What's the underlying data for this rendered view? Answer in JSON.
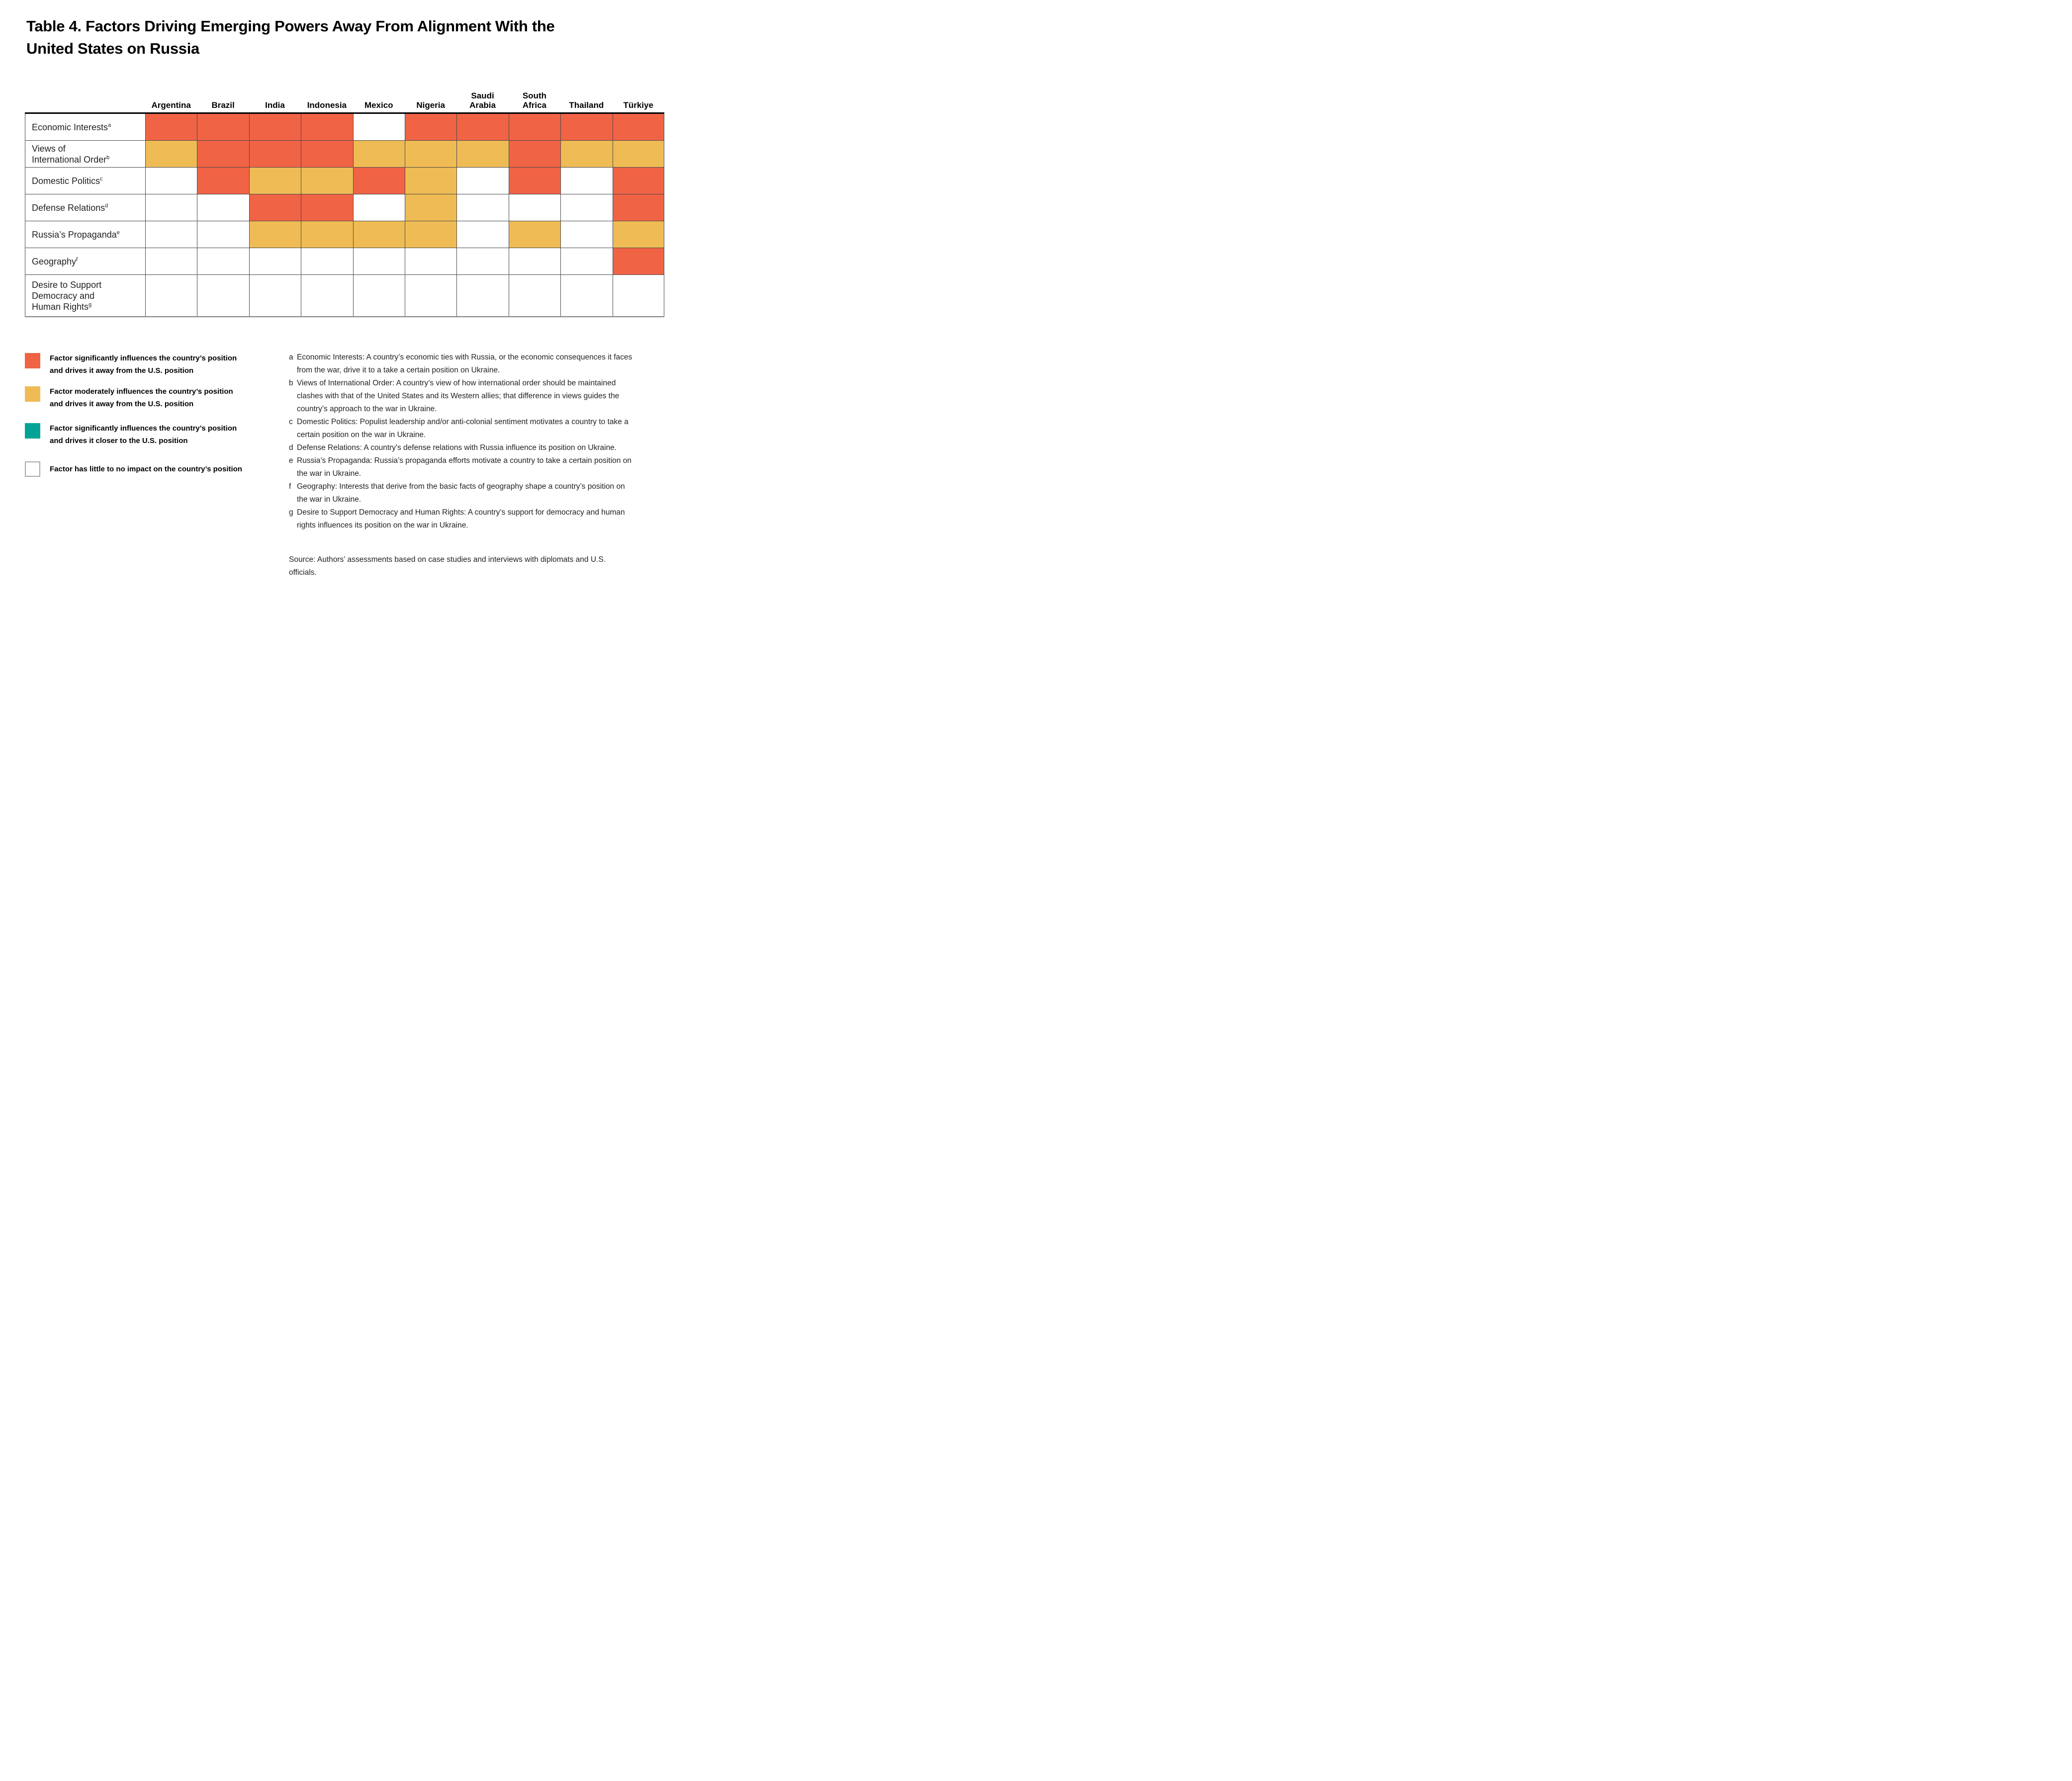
{
  "title": {
    "line1": "Table 4. Factors Driving Emerging Powers Away From Alignment With the",
    "line2": "United States on Russia"
  },
  "colors": {
    "significant_away": "#F06345",
    "moderate_away": "#EFBB54",
    "significant_closer": "#00A396",
    "none": "#FFFFFF",
    "grid_line": "#4a4a4a",
    "header_rule": "#000000",
    "bottom_rule": "#7f7f7f"
  },
  "table": {
    "columns": [
      {
        "label_lines": [
          "Argentina"
        ]
      },
      {
        "label_lines": [
          "Brazil"
        ]
      },
      {
        "label_lines": [
          "India"
        ]
      },
      {
        "label_lines": [
          "Indonesia"
        ]
      },
      {
        "label_lines": [
          "Mexico"
        ]
      },
      {
        "label_lines": [
          "Nigeria"
        ]
      },
      {
        "label_lines": [
          "Saudi",
          "Arabia"
        ]
      },
      {
        "label_lines": [
          "South",
          "Africa"
        ]
      },
      {
        "label_lines": [
          "Thailand"
        ]
      },
      {
        "label_lines": [
          "Türkiye"
        ]
      }
    ],
    "rows": [
      {
        "label_lines": [
          "Economic Interests"
        ],
        "superscript": "a",
        "cells": [
          "S",
          "S",
          "S",
          "S",
          "N",
          "S",
          "S",
          "S",
          "S",
          "S"
        ]
      },
      {
        "label_lines": [
          "Views of",
          "International Order"
        ],
        "superscript": "b",
        "cells": [
          "M",
          "S",
          "S",
          "S",
          "M",
          "M",
          "M",
          "S",
          "M",
          "M"
        ]
      },
      {
        "label_lines": [
          "Domestic Politics"
        ],
        "superscript": "c",
        "cells": [
          "N",
          "S",
          "M",
          "M",
          "S",
          "M",
          "N",
          "S",
          "N",
          "S"
        ]
      },
      {
        "label_lines": [
          "Defense Relations"
        ],
        "superscript": "d",
        "cells": [
          "N",
          "N",
          "S",
          "S",
          "N",
          "M",
          "N",
          "N",
          "N",
          "S"
        ]
      },
      {
        "label_lines": [
          "Russia’s Propaganda"
        ],
        "superscript": "e",
        "cells": [
          "N",
          "N",
          "M",
          "M",
          "M",
          "M",
          "N",
          "M",
          "N",
          "M"
        ]
      },
      {
        "label_lines": [
          "Geography"
        ],
        "superscript": "f",
        "cells": [
          "N",
          "N",
          "N",
          "N",
          "N",
          "N",
          "N",
          "N",
          "N",
          "S"
        ]
      },
      {
        "label_lines": [
          "Desire to Support",
          "Democracy and",
          "Human Rights"
        ],
        "superscript": "g",
        "cells": [
          "N",
          "N",
          "N",
          "N",
          "N",
          "N",
          "N",
          "N",
          "N",
          "N"
        ]
      }
    ],
    "cell_fill": {
      "S": "#F06345",
      "M": "#EFBB54",
      "C": "#00A396",
      "N": "#FFFFFF"
    }
  },
  "legend": {
    "items": [
      {
        "key": "significant-away",
        "color": "#F06345",
        "line1": "Factor significantly influences the country’s position",
        "line2": "and drives it away from the U.S. position"
      },
      {
        "key": "moderate-away",
        "color": "#EFBB54",
        "line1": "Factor moderately influences the country’s position",
        "line2": "and drives it away from the U.S. position"
      },
      {
        "key": "significant-closer",
        "color": "#00A396",
        "line1": "Factor significantly influences the country’s position",
        "line2": "and drives it closer to the U.S. position"
      },
      {
        "key": "none",
        "color": "#FFFFFF",
        "line1": "Factor has little to no impact on the country’s position",
        "line2": ""
      }
    ]
  },
  "footnotes": [
    {
      "letter": "a",
      "text": "Economic Interests: A country’s economic ties with Russia, or the economic consequences it faces from the war, drive it to a take a certain position on Ukraine."
    },
    {
      "letter": "b",
      "text": "Views of International Order: A country’s view of how international order should be maintained clashes with that of the United States and its Western allies; that difference in views guides the country’s approach to the war in Ukraine."
    },
    {
      "letter": "c",
      "text": "Domestic Politics: Populist leadership and/or anti-colonial sentiment motivates a country to take a certain position on the war in Ukraine."
    },
    {
      "letter": "d",
      "text": "Defense Relations: A country's defense relations with Russia influence its position on Ukraine."
    },
    {
      "letter": "e",
      "text": "Russia’s Propaganda: Russia’s propaganda efforts motivate a country to take a certain position on the war in Ukraine."
    },
    {
      "letter": "f",
      "text": "Geography: Interests that derive from the basic facts of geography shape a country’s position on the war in Ukraine."
    },
    {
      "letter": "g",
      "text": "Desire to Support Democracy and Human Rights: A country’s support for democracy and human rights influences its position on the war in Ukraine."
    }
  ],
  "source": "Source: Authors’ assessments based on case studies and interviews with diplomats and U.S. officials.",
  "chart_data": {
    "type": "heatmap",
    "title": "Table 4. Factors Driving Emerging Powers Away From Alignment With the United States on Russia",
    "categories": [
      "Argentina",
      "Brazil",
      "India",
      "Indonesia",
      "Mexico",
      "Nigeria",
      "Saudi Arabia",
      "South Africa",
      "Thailand",
      "Türkiye"
    ],
    "rows": [
      "Economic Interests",
      "Views of International Order",
      "Domestic Politics",
      "Defense Relations",
      "Russia’s Propaganda",
      "Geography",
      "Desire to Support Democracy and Human Rights"
    ],
    "values": [
      [
        "significant-away",
        "significant-away",
        "significant-away",
        "significant-away",
        "none",
        "significant-away",
        "significant-away",
        "significant-away",
        "significant-away",
        "significant-away"
      ],
      [
        "moderate-away",
        "significant-away",
        "significant-away",
        "significant-away",
        "moderate-away",
        "moderate-away",
        "moderate-away",
        "significant-away",
        "moderate-away",
        "moderate-away"
      ],
      [
        "none",
        "significant-away",
        "moderate-away",
        "moderate-away",
        "significant-away",
        "moderate-away",
        "none",
        "significant-away",
        "none",
        "significant-away"
      ],
      [
        "none",
        "none",
        "significant-away",
        "significant-away",
        "none",
        "moderate-away",
        "none",
        "none",
        "none",
        "significant-away"
      ],
      [
        "none",
        "none",
        "moderate-away",
        "moderate-away",
        "moderate-away",
        "moderate-away",
        "none",
        "moderate-away",
        "none",
        "moderate-away"
      ],
      [
        "none",
        "none",
        "none",
        "none",
        "none",
        "none",
        "none",
        "none",
        "none",
        "significant-away"
      ],
      [
        "none",
        "none",
        "none",
        "none",
        "none",
        "none",
        "none",
        "none",
        "none",
        "none"
      ]
    ],
    "value_meanings": {
      "significant-away": "Factor significantly influences the country’s position and drives it away from the U.S. position",
      "moderate-away": "Factor moderately influences the country’s position and drives it away from the U.S. position",
      "significant-closer": "Factor significantly influences the country’s position and drives it closer to the U.S. position",
      "none": "Factor has little to no impact on the country’s position"
    },
    "legend_position": "bottom-left",
    "grid": true
  }
}
